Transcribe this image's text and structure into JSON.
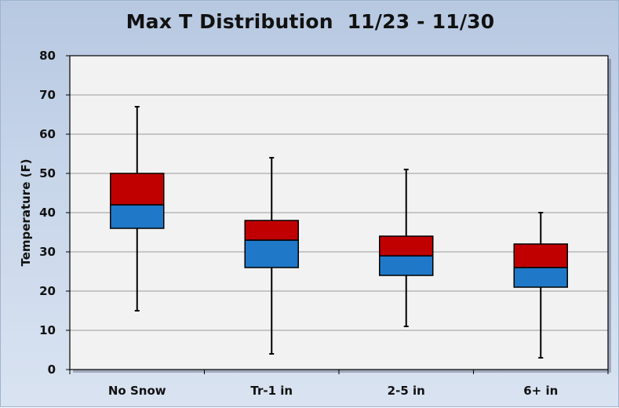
{
  "chart_data": {
    "type": "box",
    "title": "Max T Distribution  11/23 - 11/30",
    "xlabel": "",
    "ylabel": "Temperature (F)",
    "ylim": [
      0,
      80
    ],
    "yticks": [
      "0",
      "10",
      "20",
      "30",
      "40",
      "50",
      "60",
      "70",
      "80"
    ],
    "grid": true,
    "categories": [
      "No Snow",
      "Tr-1 in",
      "2-5 in",
      "6+ in"
    ],
    "min": [
      15,
      4,
      11,
      3
    ],
    "q1": [
      36,
      26,
      24,
      21
    ],
    "median": [
      42,
      33,
      29,
      26
    ],
    "q3": [
      50,
      38,
      34,
      32
    ],
    "max": [
      67,
      54,
      51,
      40
    ],
    "colors": {
      "lower_box": "#1f78c8",
      "upper_box": "#c00000",
      "plot_bg": "#f2f2f2",
      "grid": "#9a9a9a"
    }
  }
}
